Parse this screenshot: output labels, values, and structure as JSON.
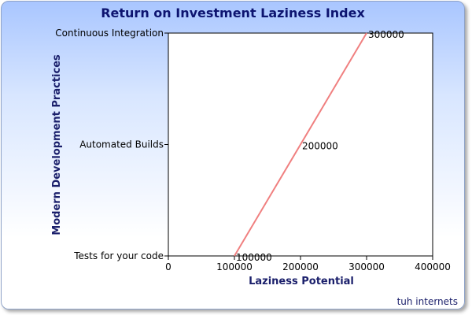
{
  "chart_data": {
    "type": "line",
    "title": "Return on Investment Laziness Index",
    "xlabel": "Laziness Potential",
    "ylabel": "Modern Development Practices",
    "categories": [
      "Tests for your code",
      "Automated Builds",
      "Continuous Integration"
    ],
    "x_ticks": [
      "0",
      "100000",
      "200000",
      "300000",
      "400000"
    ],
    "xlim": [
      0,
      400000
    ],
    "series": [
      {
        "color": "#f08080",
        "x": [
          100000,
          200000,
          300000
        ],
        "y": [
          "Tests for your code",
          "Automated Builds",
          "Continuous Integration"
        ],
        "labels": [
          "100000",
          "200000",
          "300000"
        ]
      }
    ],
    "grid": false,
    "legend": "none"
  },
  "credit": "tuh internets",
  "colors": {
    "title": "#0d1470",
    "line": "#f08080"
  }
}
